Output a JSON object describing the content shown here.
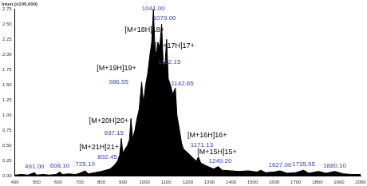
{
  "chart_data": {
    "type": "line",
    "title": "Inten.(x100,000)",
    "color": "#000000",
    "grid": false,
    "x": [
      400,
      430,
      460,
      491,
      500,
      530,
      560,
      590,
      608.1,
      620,
      650,
      680,
      700,
      725.1,
      740,
      770,
      800,
      820,
      840,
      860,
      875,
      885,
      892.45,
      900,
      910,
      920,
      930,
      937.15,
      945,
      955,
      965,
      975,
      986.55,
      995,
      1005,
      1015,
      1025,
      1033,
      1041,
      1048,
      1055,
      1062,
      1070,
      1079,
      1086,
      1094,
      1102.15,
      1110,
      1120,
      1130,
      1142.65,
      1150,
      1160,
      1171.13,
      1180,
      1195,
      1210,
      1225,
      1240,
      1249.2,
      1260,
      1280,
      1300,
      1320,
      1341,
      1360,
      1400,
      1440,
      1480,
      1520,
      1539,
      1560,
      1600,
      1627,
      1660,
      1700,
      1735.95,
      1760,
      1805,
      1840,
      1880.1,
      1920,
      1960,
      2000
    ],
    "values": [
      0.02,
      0.03,
      0.02,
      0.06,
      0.02,
      0.03,
      0.02,
      0.03,
      0.07,
      0.03,
      0.04,
      0.03,
      0.05,
      0.09,
      0.04,
      0.06,
      0.08,
      0.1,
      0.12,
      0.18,
      0.25,
      0.35,
      0.62,
      0.38,
      0.45,
      0.5,
      0.6,
      0.95,
      0.62,
      0.75,
      0.95,
      1.1,
      1.55,
      1.2,
      1.5,
      1.7,
      2.0,
      2.2,
      2.75,
      2.1,
      2.0,
      2.2,
      2.1,
      2.5,
      1.9,
      1.8,
      2.25,
      1.6,
      1.5,
      1.35,
      1.45,
      1.0,
      0.8,
      0.55,
      0.45,
      0.4,
      0.35,
      0.3,
      0.25,
      0.32,
      0.22,
      0.18,
      0.15,
      0.12,
      0.16,
      0.1,
      0.09,
      0.08,
      0.09,
      0.07,
      0.1,
      0.06,
      0.07,
      0.09,
      0.05,
      0.06,
      0.1,
      0.05,
      0.08,
      0.05,
      0.08,
      0.04,
      0.03,
      0.03
    ],
    "xlim": [
      400,
      2000
    ],
    "xticks": [
      400,
      500,
      600,
      700,
      800,
      900,
      1000,
      1100,
      1200,
      1300,
      1400,
      1500,
      1600,
      1700,
      1800,
      1900,
      2000
    ],
    "ylim": [
      0,
      2.75
    ],
    "yticks": [
      {
        "value": 0,
        "label": "0.00"
      },
      {
        "value": 0.25,
        "label": "0.25"
      },
      {
        "value": 0.5,
        "label": "0.50"
      },
      {
        "value": 0.75,
        "label": "0.75"
      },
      {
        "value": 1,
        "label": "1.00"
      },
      {
        "value": 1.25,
        "label": "1.25"
      },
      {
        "value": 1.5,
        "label": "1.50"
      },
      {
        "value": 1.75,
        "label": "1.75"
      },
      {
        "value": 2,
        "label": "2.00"
      },
      {
        "value": 2.25,
        "label": "2.25"
      },
      {
        "value": 2.5,
        "label": "2.50"
      },
      {
        "value": 2.75,
        "label": "2.75"
      }
    ],
    "annotations": [
      {
        "text": "1041.00",
        "x": 1041,
        "y": 2.7,
        "color": "#2f3fb8"
      },
      {
        "text": "[M+18H]18+",
        "x": 1000,
        "y": 2.35,
        "color": "#000000"
      },
      {
        "text": "1079.00",
        "x": 1092,
        "y": 2.55,
        "color": "#2f3fb8"
      },
      {
        "text": "[M+17H]17+",
        "x": 1140,
        "y": 2.08,
        "color": "#000000"
      },
      {
        "text": "1102.15",
        "x": 1115,
        "y": 1.82,
        "color": "#2f3fb8"
      },
      {
        "text": "1142.65",
        "x": 1175,
        "y": 1.47,
        "color": "#2f3fb8"
      },
      {
        "text": "[M+19H]19+",
        "x": 870,
        "y": 1.72,
        "color": "#000000"
      },
      {
        "text": "986.55",
        "x": 880,
        "y": 1.5,
        "color": "#2f3fb8"
      },
      {
        "text": "[M+20H]20+",
        "x": 835,
        "y": 0.85,
        "color": "#000000"
      },
      {
        "text": "937.15",
        "x": 858,
        "y": 0.66,
        "color": "#2f3fb8"
      },
      {
        "text": "[M+21H]21+",
        "x": 790,
        "y": 0.42,
        "color": "#000000"
      },
      {
        "text": "892.45",
        "x": 828,
        "y": 0.26,
        "color": "#2f3fb8"
      },
      {
        "text": "[M+16H]16+",
        "x": 1290,
        "y": 0.62,
        "color": "#000000"
      },
      {
        "text": "1171.13",
        "x": 1265,
        "y": 0.46,
        "color": "#2f3fb8"
      },
      {
        "text": "[M+15H]15+",
        "x": 1335,
        "y": 0.34,
        "color": "#000000"
      },
      {
        "text": "1249.20",
        "x": 1350,
        "y": 0.2,
        "color": "#2f3fb8"
      },
      {
        "text": "491.00",
        "x": 491,
        "y": 0.1,
        "color": "#2f3fb8"
      },
      {
        "text": "608.10",
        "x": 608,
        "y": 0.12,
        "color": "#2f3fb8"
      },
      {
        "text": "725.10",
        "x": 725,
        "y": 0.14,
        "color": "#2f3fb8"
      },
      {
        "text": "1627.00",
        "x": 1627,
        "y": 0.13,
        "color": "#2f3fb8"
      },
      {
        "text": "1735.95",
        "x": 1736,
        "y": 0.15,
        "color": "#2f3fb8"
      },
      {
        "text": "1880.10",
        "x": 1880,
        "y": 0.12,
        "color": "#2f3fb8"
      }
    ]
  }
}
